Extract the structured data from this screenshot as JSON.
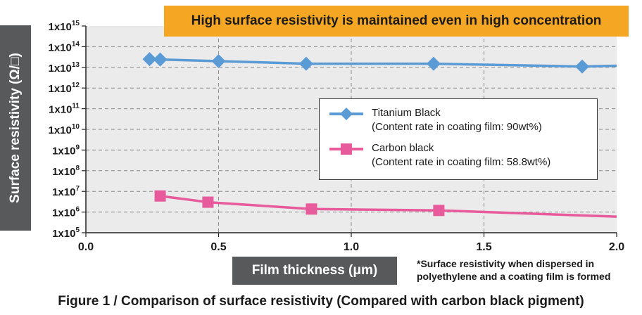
{
  "banner": "High surface resistivity is maintained even in high concentration",
  "caption": "Figure 1 / Comparison of surface resistivity (Compared with carbon black pigment)",
  "footnote": [
    "*Surface resistivity when dispersed in",
    "polyethylene and a coating film is formed"
  ],
  "legend": [
    {
      "name": "Titanium Black",
      "detail": "(Content rate in coating film: 90wt%)"
    },
    {
      "name": "Carbon black",
      "detail": "(Content rate in coating film: 58.8wt%)"
    }
  ],
  "colors": {
    "titanium": "#5b9bd5",
    "carbon": "#e75a9b",
    "banner": "#f5a623",
    "label_box": "#58595b",
    "plot_bg": "#ebebeb"
  },
  "chart_data": {
    "type": "line",
    "title": "High surface resistivity is maintained even in high concentration",
    "xlabel": "Film thickness (μm)",
    "ylabel": "Surface resistivity (Ω/□)",
    "xlim": [
      0.0,
      2.0
    ],
    "ylim": [
      100000.0,
      1000000000000000.0
    ],
    "yscale": "log",
    "grid": true,
    "legend_position": "center-right",
    "x_ticks": [
      "0.0",
      "0.5",
      "1.0",
      "1.5",
      "2.0"
    ],
    "y_ticks": [
      {
        "base": "1x10",
        "exp": "15"
      },
      {
        "base": "1x10",
        "exp": "14"
      },
      {
        "base": "1x10",
        "exp": "13"
      },
      {
        "base": "1x10",
        "exp": "12"
      },
      {
        "base": "1x10",
        "exp": "11"
      },
      {
        "base": "1x10",
        "exp": "10"
      },
      {
        "base": "1x10",
        "exp": "9"
      },
      {
        "base": "1x10",
        "exp": "8"
      },
      {
        "base": "1x10",
        "exp": "7"
      },
      {
        "base": "1x10",
        "exp": "6"
      },
      {
        "base": "1x10",
        "exp": "5"
      }
    ],
    "series": [
      {
        "name": "Titanium Black",
        "marker": "diamond",
        "x": [
          0.24,
          0.28,
          0.5,
          0.83,
          1.31,
          1.87
        ],
        "y": [
          25000000000000.0,
          24000000000000.0,
          20000000000000.0,
          15000000000000.0,
          15000000000000.0,
          11000000000000.0
        ],
        "line_end": [
          2.0,
          12000000000000.0
        ]
      },
      {
        "name": "Carbon black",
        "marker": "square",
        "x": [
          0.28,
          0.46,
          0.85,
          1.33
        ],
        "y": [
          6000000.0,
          3000000.0,
          1400000.0,
          1200000.0
        ],
        "line_end": [
          2.0,
          600000.0
        ]
      }
    ]
  }
}
